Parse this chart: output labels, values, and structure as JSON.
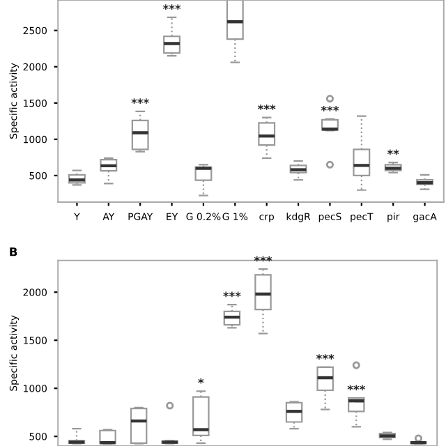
{
  "chart_data": [
    {
      "type": "box",
      "ylabel": "Specific activity",
      "categories": [
        "Y",
        "AY",
        "PGAY",
        "EY",
        "G 0.2%",
        "G 1%",
        "crp",
        "kdgR",
        "pecS",
        "pecT",
        "pir",
        "gacA"
      ],
      "ylim": [
        135,
        2920
      ],
      "yticks": [
        500,
        1000,
        1500,
        2000,
        2500
      ],
      "series": [
        {
          "color": "#999999",
          "boxes": [
            {
              "low": 370,
              "q1": 400,
              "median": 440,
              "q3": 510,
              "high": 570
            },
            {
              "low": 390,
              "q1": 565,
              "median": 635,
              "q3": 720,
              "high": 740
            },
            {
              "low": 830,
              "q1": 860,
              "median": 1090,
              "q3": 1260,
              "high": 1385
            },
            {
              "low": 2150,
              "q1": 2190,
              "median": 2320,
              "q3": 2420,
              "high": 2680
            },
            {
              "low": 225,
              "q1": 435,
              "median": 600,
              "q3": 615,
              "high": 650
            },
            {
              "low": 2060,
              "q1": 2380,
              "median": 2620,
              "q3": 2920,
              "high": 2920
            },
            {
              "low": 740,
              "q1": 920,
              "median": 1045,
              "q3": 1225,
              "high": 1300
            },
            {
              "low": 440,
              "q1": 540,
              "median": 580,
              "q3": 640,
              "high": 700
            },
            {
              "low": 1120,
              "q1": 1130,
              "median": 1140,
              "q3": 1270,
              "high": 1280,
              "outliers": [
                1560,
                650
              ]
            },
            {
              "low": 300,
              "q1": 500,
              "median": 640,
              "q3": 860,
              "high": 1320
            },
            {
              "low": 540,
              "q1": 570,
              "median": 600,
              "q3": 650,
              "high": 680
            },
            {
              "low": 310,
              "q1": 380,
              "median": 400,
              "q3": 440,
              "high": 510
            }
          ]
        }
      ],
      "annotations": [
        {
          "text": "***",
          "x": "PGAY",
          "y": 1385
        },
        {
          "text": "***",
          "x": "EY",
          "y": 2680
        },
        {
          "text": "***",
          "x": "crp",
          "y": 1300
        },
        {
          "text": "***",
          "x": "pecS",
          "y": 1280
        },
        {
          "text": "**",
          "x": "pir",
          "y": 680
        }
      ]
    },
    {
      "type": "box",
      "title": "B",
      "ylabel": "Specific activity",
      "categories": [
        null,
        null,
        null,
        null,
        null,
        null,
        null,
        null,
        null,
        null,
        null,
        null
      ],
      "ylim": [
        400,
        2330
      ],
      "yticks": [
        500,
        1000,
        1500,
        2000
      ],
      "tick_labels": "y",
      "series": [
        {
          "color": "#999999",
          "boxes": [
            {
              "low": 425,
              "q1": 430,
              "median": 440,
              "q3": 455,
              "high": 580
            },
            {
              "low": 425,
              "q1": 430,
              "median": 435,
              "q3": 560,
              "high": 570
            },
            {
              "low": 425,
              "q1": 430,
              "median": 660,
              "q3": 790,
              "high": 800
            },
            {
              "low": 425,
              "q1": 430,
              "median": 440,
              "q3": 450,
              "high": 455,
              "outliers": [
                820
              ]
            },
            {
              "low": 430,
              "q1": 510,
              "median": 570,
              "q3": 910,
              "high": 970
            },
            {
              "low": 1630,
              "q1": 1660,
              "median": 1740,
              "q3": 1800,
              "high": 1870
            },
            {
              "low": 1570,
              "q1": 1820,
              "median": 1980,
              "q3": 2180,
              "high": 2240
            },
            {
              "low": 580,
              "q1": 650,
              "median": 760,
              "q3": 850,
              "high": 860
            },
            {
              "low": 780,
              "q1": 980,
              "median": 1110,
              "q3": 1220,
              "high": 1220
            },
            {
              "low": 600,
              "q1": 760,
              "median": 870,
              "q3": 900,
              "high": 900,
              "outliers": [
                1240
              ]
            },
            {
              "low": 470,
              "q1": 490,
              "median": 505,
              "q3": 530,
              "high": 540
            },
            {
              "low": 425,
              "q1": 430,
              "median": 435,
              "q3": 440,
              "high": 445,
              "outliers": [
                480
              ]
            }
          ]
        }
      ],
      "annotations": [
        {
          "text": "*",
          "y": 970
        },
        {
          "text": "***",
          "y": 1870
        },
        {
          "text": "***",
          "y": 2240
        },
        {
          "text": "***",
          "y": 1220
        },
        {
          "text": "***",
          "y": 900
        }
      ]
    }
  ]
}
